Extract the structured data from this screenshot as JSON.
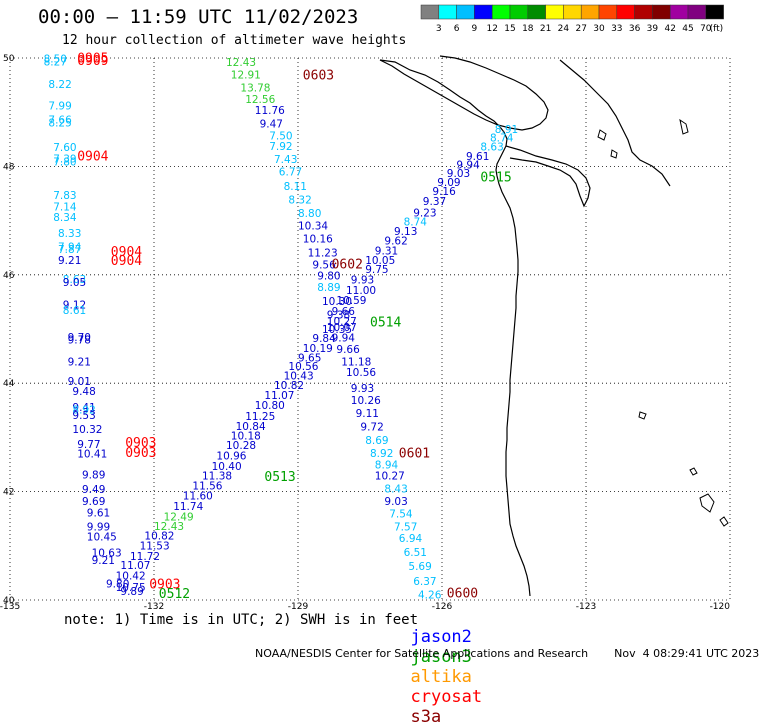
{
  "header": {
    "title": "00:00 – 11:59 UTC 11/02/2023",
    "subtitle": "12 hour collection of altimeter wave heights"
  },
  "colorbar": {
    "unit": "(ft)",
    "labels": [
      "3",
      "6",
      "9",
      "12",
      "15",
      "18",
      "21",
      "24",
      "27",
      "30",
      "33",
      "36",
      "39",
      "42",
      "45",
      "70"
    ],
    "colors": [
      "#808080",
      "#00ffff",
      "#00bfff",
      "#0000ff",
      "#00ff00",
      "#00cc00",
      "#008c00",
      "#ffff00",
      "#ffd700",
      "#ffa500",
      "#ff4500",
      "#ff0000",
      "#b00000",
      "#800000",
      "#a000a0",
      "#800080",
      "#000000"
    ]
  },
  "axes": {
    "lat_labels": [
      "50",
      "48",
      "46",
      "44",
      "42",
      "40"
    ],
    "lon_labels": [
      "-135",
      "-132",
      "-129",
      "-126",
      "-123",
      "-120"
    ]
  },
  "notes": {
    "text": "note: 1) Time is in UTC; 2) SWH is in feet",
    "credit": "NOAA/NESDIS Center for Satellite Applications and Research",
    "generated": "Nov  4 08:29:41 UTC 2023"
  },
  "satellites": [
    {
      "name": "jason2",
      "color": "#0000ff"
    },
    {
      "name": "jason3",
      "color": "#00a000"
    },
    {
      "name": "altika",
      "color": "#ff9900"
    },
    {
      "name": "cryosat",
      "color": "#ff0000"
    },
    {
      "name": "s3a",
      "color": "#8b0000"
    }
  ],
  "tracks": [
    {
      "id": "cryosat-0904-0905-0903",
      "time_labels": [
        {
          "text": "0905",
          "lon": -133.6,
          "lat": 49.92,
          "color": "#ff0000"
        },
        {
          "text": "0909",
          "lon": -133.6,
          "lat": 49.87,
          "color": "#ff0000"
        },
        {
          "text": "0904",
          "lon": -133.6,
          "lat": 48.11,
          "color": "#ff0000"
        },
        {
          "text": "0904",
          "lon": -132.9,
          "lat": 46.35,
          "color": "#ff0000"
        },
        {
          "text": "0904",
          "lon": -132.9,
          "lat": 46.18,
          "color": "#ff0000"
        },
        {
          "text": "0903",
          "lon": -132.6,
          "lat": 42.82,
          "color": "#ff0000"
        },
        {
          "text": "0903",
          "lon": -132.6,
          "lat": 42.64,
          "color": "#ff0000"
        },
        {
          "text": "0903",
          "lon": -132.1,
          "lat": 40.21,
          "color": "#ff0000"
        }
      ],
      "points": [
        {
          "v": "8.50",
          "lon": -134.3,
          "lat": 49.92,
          "c": "#00bfff"
        },
        {
          "v": "8.27",
          "lon": -134.3,
          "lat": 49.86,
          "c": "#00bfff"
        },
        {
          "v": "8.22",
          "lon": -134.2,
          "lat": 49.45,
          "c": "#00bfff"
        },
        {
          "v": "7.99",
          "lon": -134.2,
          "lat": 49.05,
          "c": "#00bfff"
        },
        {
          "v": "7.66",
          "lon": -134.2,
          "lat": 48.79,
          "c": "#00bfff"
        },
        {
          "v": "8.25",
          "lon": -134.2,
          "lat": 48.74,
          "c": "#00bfff"
        },
        {
          "v": "7.60",
          "lon": -134.1,
          "lat": 48.28,
          "c": "#00bfff"
        },
        {
          "v": "7.39",
          "lon": -134.1,
          "lat": 48.07,
          "c": "#00bfff"
        },
        {
          "v": "7.80",
          "lon": -134.1,
          "lat": 48.02,
          "c": "#00bfff"
        },
        {
          "v": "7.83",
          "lon": -134.1,
          "lat": 47.4,
          "c": "#00bfff"
        },
        {
          "v": "7.14",
          "lon": -134.1,
          "lat": 47.19,
          "c": "#00bfff"
        },
        {
          "v": "8.34",
          "lon": -134.1,
          "lat": 46.99,
          "c": "#00bfff"
        },
        {
          "v": "8.33",
          "lon": -134.0,
          "lat": 46.7,
          "c": "#00bfff"
        },
        {
          "v": "7.94",
          "lon": -134.0,
          "lat": 46.45,
          "c": "#00bfff"
        },
        {
          "v": "7.87",
          "lon": -134.0,
          "lat": 46.4,
          "c": "#00bfff"
        },
        {
          "v": "9.21",
          "lon": -134.0,
          "lat": 46.2,
          "c": "#0000cd"
        },
        {
          "v": "8.63",
          "lon": -133.9,
          "lat": 45.85,
          "c": "#00bfff"
        },
        {
          "v": "9.05",
          "lon": -133.9,
          "lat": 45.79,
          "c": "#0000cd"
        },
        {
          "v": "9.12",
          "lon": -133.9,
          "lat": 45.38,
          "c": "#0000cd"
        },
        {
          "v": "8.61",
          "lon": -133.9,
          "lat": 45.28,
          "c": "#00bfff"
        },
        {
          "v": "9.70",
          "lon": -133.8,
          "lat": 44.78,
          "c": "#0000cd"
        },
        {
          "v": "9.78",
          "lon": -133.8,
          "lat": 44.73,
          "c": "#0000cd"
        },
        {
          "v": "9.21",
          "lon": -133.8,
          "lat": 44.33,
          "c": "#0000cd"
        },
        {
          "v": "9.01",
          "lon": -133.8,
          "lat": 43.97,
          "c": "#0000cd"
        },
        {
          "v": "9.48",
          "lon": -133.7,
          "lat": 43.78,
          "c": "#0000cd"
        },
        {
          "v": "9.41",
          "lon": -133.7,
          "lat": 43.49,
          "c": "#0000cd"
        },
        {
          "v": "8.92",
          "lon": -133.7,
          "lat": 43.44,
          "c": "#00bfff"
        },
        {
          "v": "9.53",
          "lon": -133.7,
          "lat": 43.34,
          "c": "#0000cd"
        },
        {
          "v": "10.32",
          "lon": -133.7,
          "lat": 43.08,
          "c": "#0000cd"
        },
        {
          "v": "9.77",
          "lon": -133.6,
          "lat": 42.8,
          "c": "#0000cd"
        },
        {
          "v": "10.41",
          "lon": -133.6,
          "lat": 42.63,
          "c": "#0000cd"
        },
        {
          "v": "9.89",
          "lon": -133.5,
          "lat": 42.24,
          "c": "#0000cd"
        },
        {
          "v": "9.49",
          "lon": -133.5,
          "lat": 41.97,
          "c": "#0000cd"
        },
        {
          "v": "9.69",
          "lon": -133.5,
          "lat": 41.75,
          "c": "#0000cd"
        },
        {
          "v": "9.61",
          "lon": -133.4,
          "lat": 41.54,
          "c": "#0000cd"
        },
        {
          "v": "9.99",
          "lon": -133.4,
          "lat": 41.28,
          "c": "#0000cd"
        },
        {
          "v": "10.45",
          "lon": -133.4,
          "lat": 41.1,
          "c": "#0000cd"
        },
        {
          "v": "10.63",
          "lon": -133.3,
          "lat": 40.8,
          "c": "#0000cd"
        },
        {
          "v": "9.21",
          "lon": -133.3,
          "lat": 40.66,
          "c": "#0000cd"
        },
        {
          "v": "9.80",
          "lon": -133.0,
          "lat": 40.23,
          "c": "#0000cd"
        },
        {
          "v": "10.75",
          "lon": -132.8,
          "lat": 40.17,
          "c": "#0000cd"
        },
        {
          "v": "9.89",
          "lon": -132.7,
          "lat": 40.09,
          "c": "#0000cd"
        }
      ]
    },
    {
      "id": "s3a-0603-0600",
      "time_labels": [
        {
          "text": "0603",
          "lon": -128.9,
          "lat": 49.6,
          "color": "#8b0000"
        },
        {
          "text": "0602",
          "lon": -128.3,
          "lat": 46.12,
          "color": "#8b0000"
        },
        {
          "text": "0601",
          "lon": -126.9,
          "lat": 42.63,
          "color": "#8b0000"
        },
        {
          "text": "0600",
          "lon": -125.9,
          "lat": 40.05,
          "color": "#8b0000"
        }
      ],
      "points": [
        {
          "v": "12.43",
          "lon": -130.5,
          "lat": 49.85,
          "c": "#32cd32"
        },
        {
          "v": "12.91",
          "lon": -130.4,
          "lat": 49.62,
          "c": "#32cd32"
        },
        {
          "v": "13.78",
          "lon": -130.2,
          "lat": 49.38,
          "c": "#32cd32"
        },
        {
          "v": "12.56",
          "lon": -130.1,
          "lat": 49.17,
          "c": "#32cd32"
        },
        {
          "v": "11.76",
          "lon": -129.9,
          "lat": 48.97,
          "c": "#0000cd"
        },
        {
          "v": "9.47",
          "lon": -129.8,
          "lat": 48.72,
          "c": "#0000cd"
        },
        {
          "v": "7.50",
          "lon": -129.6,
          "lat": 48.5,
          "c": "#00bfff"
        },
        {
          "v": "7.92",
          "lon": -129.6,
          "lat": 48.3,
          "c": "#00bfff"
        },
        {
          "v": "7.43",
          "lon": -129.5,
          "lat": 48.06,
          "c": "#00bfff"
        },
        {
          "v": "6.77",
          "lon": -129.4,
          "lat": 47.83,
          "c": "#00bfff"
        },
        {
          "v": "8.11",
          "lon": -129.3,
          "lat": 47.56,
          "c": "#00bfff"
        },
        {
          "v": "8.32",
          "lon": -129.2,
          "lat": 47.32,
          "c": "#00bfff"
        },
        {
          "v": "8.80",
          "lon": -129.0,
          "lat": 47.07,
          "c": "#00bfff"
        },
        {
          "v": "10.34",
          "lon": -129.0,
          "lat": 46.84,
          "c": "#0000cd"
        },
        {
          "v": "10.16",
          "lon": -128.9,
          "lat": 46.6,
          "c": "#0000cd"
        },
        {
          "v": "11.23",
          "lon": -128.8,
          "lat": 46.34,
          "c": "#0000cd"
        },
        {
          "v": "9.56",
          "lon": -128.7,
          "lat": 46.12,
          "c": "#0000cd"
        },
        {
          "v": "9.80",
          "lon": -128.6,
          "lat": 45.91,
          "c": "#0000cd"
        },
        {
          "v": "8.89",
          "lon": -128.6,
          "lat": 45.7,
          "c": "#00bfff"
        },
        {
          "v": "10.30",
          "lon": -128.5,
          "lat": 45.44,
          "c": "#0000cd"
        },
        {
          "v": "9.38",
          "lon": -128.4,
          "lat": 45.19,
          "c": "#0000cd"
        },
        {
          "v": "10.07",
          "lon": -128.4,
          "lat": 44.96,
          "c": "#0000cd"
        },
        {
          "v": "9.94",
          "lon": -128.3,
          "lat": 44.77,
          "c": "#0000cd"
        },
        {
          "v": "9.66",
          "lon": -128.2,
          "lat": 44.56,
          "c": "#0000cd"
        },
        {
          "v": "11.18",
          "lon": -128.1,
          "lat": 44.33,
          "c": "#0000cd"
        },
        {
          "v": "10.56",
          "lon": -128.0,
          "lat": 44.13,
          "c": "#0000cd"
        },
        {
          "v": "9.93",
          "lon": -127.9,
          "lat": 43.84,
          "c": "#0000cd"
        },
        {
          "v": "10.26",
          "lon": -127.9,
          "lat": 43.62,
          "c": "#0000cd"
        },
        {
          "v": "9.11",
          "lon": -127.8,
          "lat": 43.38,
          "c": "#0000cd"
        },
        {
          "v": "9.72",
          "lon": -127.7,
          "lat": 43.13,
          "c": "#0000cd"
        },
        {
          "v": "8.69",
          "lon": -127.6,
          "lat": 42.88,
          "c": "#00bfff"
        },
        {
          "v": "8.92",
          "lon": -127.5,
          "lat": 42.64,
          "c": "#00bfff"
        },
        {
          "v": "8.94",
          "lon": -127.4,
          "lat": 42.43,
          "c": "#00bfff"
        },
        {
          "v": "10.27",
          "lon": -127.4,
          "lat": 42.22,
          "c": "#0000cd"
        },
        {
          "v": "8.43",
          "lon": -127.2,
          "lat": 41.98,
          "c": "#00bfff"
        },
        {
          "v": "9.03",
          "lon": -127.2,
          "lat": 41.75,
          "c": "#0000cd"
        },
        {
          "v": "7.54",
          "lon": -127.1,
          "lat": 41.52,
          "c": "#00bfff"
        },
        {
          "v": "7.57",
          "lon": -127.0,
          "lat": 41.28,
          "c": "#00bfff"
        },
        {
          "v": "6.94",
          "lon": -126.9,
          "lat": 41.07,
          "c": "#00bfff"
        },
        {
          "v": "6.51",
          "lon": -126.8,
          "lat": 40.81,
          "c": "#00bfff"
        },
        {
          "v": "5.69",
          "lon": -126.7,
          "lat": 40.55,
          "c": "#00bfff"
        },
        {
          "v": "6.37",
          "lon": -126.6,
          "lat": 40.28,
          "c": "#00bfff"
        },
        {
          "v": "4.26",
          "lon": -126.5,
          "lat": 40.03,
          "c": "#00bfff"
        }
      ]
    },
    {
      "id": "jason3-0512-0515",
      "time_labels": [
        {
          "text": "0515",
          "lon": -125.2,
          "lat": 47.72,
          "color": "#00a000"
        },
        {
          "text": "0514",
          "lon": -127.5,
          "lat": 45.05,
          "color": "#00a000"
        },
        {
          "text": "0513",
          "lon": -129.7,
          "lat": 42.2,
          "color": "#00a000"
        },
        {
          "text": "0512",
          "lon": -131.9,
          "lat": 40.04,
          "color": "#00a000"
        }
      ],
      "points": [
        {
          "v": "8.91",
          "lon": -124.9,
          "lat": 48.62,
          "c": "#00bfff"
        },
        {
          "v": "8.74",
          "lon": -125.0,
          "lat": 48.46,
          "c": "#00bfff"
        },
        {
          "v": "8.63",
          "lon": -125.2,
          "lat": 48.29,
          "c": "#00bfff"
        },
        {
          "v": "9.61",
          "lon": -125.5,
          "lat": 48.12,
          "c": "#0000cd"
        },
        {
          "v": "9.94",
          "lon": -125.7,
          "lat": 47.96,
          "c": "#0000cd"
        },
        {
          "v": "9.03",
          "lon": -125.9,
          "lat": 47.8,
          "c": "#0000cd"
        },
        {
          "v": "9.09",
          "lon": -126.1,
          "lat": 47.64,
          "c": "#0000cd"
        },
        {
          "v": "9.16",
          "lon": -126.2,
          "lat": 47.47,
          "c": "#0000cd"
        },
        {
          "v": "9.37",
          "lon": -126.4,
          "lat": 47.29,
          "c": "#0000cd"
        },
        {
          "v": "9.23",
          "lon": -126.6,
          "lat": 47.08,
          "c": "#0000cd"
        },
        {
          "v": "8.74",
          "lon": -126.8,
          "lat": 46.91,
          "c": "#00bfff"
        },
        {
          "v": "9.13",
          "lon": -127.0,
          "lat": 46.73,
          "c": "#0000cd"
        },
        {
          "v": "9.62",
          "lon": -127.2,
          "lat": 46.56,
          "c": "#0000cd"
        },
        {
          "v": "9.31",
          "lon": -127.4,
          "lat": 46.37,
          "c": "#0000cd"
        },
        {
          "v": "10.05",
          "lon": -127.6,
          "lat": 46.2,
          "c": "#0000cd"
        },
        {
          "v": "9.75",
          "lon": -127.6,
          "lat": 46.03,
          "c": "#0000cd"
        },
        {
          "v": "9.93",
          "lon": -127.9,
          "lat": 45.84,
          "c": "#0000cd"
        },
        {
          "v": "11.00",
          "lon": -128.0,
          "lat": 45.65,
          "c": "#0000cd"
        },
        {
          "v": "10.59",
          "lon": -128.2,
          "lat": 45.46,
          "c": "#0000cd"
        },
        {
          "v": "9.66",
          "lon": -128.3,
          "lat": 45.26,
          "c": "#0000cd"
        },
        {
          "v": "10.27",
          "lon": -128.4,
          "lat": 45.07,
          "c": "#0000cd"
        },
        {
          "v": "10.35",
          "lon": -128.5,
          "lat": 44.93,
          "c": "#0000cd"
        },
        {
          "v": "9.84",
          "lon": -128.7,
          "lat": 44.76,
          "c": "#0000cd"
        },
        {
          "v": "10.19",
          "lon": -128.9,
          "lat": 44.58,
          "c": "#0000cd"
        },
        {
          "v": "9.65",
          "lon": -129.0,
          "lat": 44.4,
          "c": "#0000cd"
        },
        {
          "v": "10.56",
          "lon": -129.2,
          "lat": 44.24,
          "c": "#0000cd"
        },
        {
          "v": "10.43",
          "lon": -129.3,
          "lat": 44.07,
          "c": "#0000cd"
        },
        {
          "v": "10.82",
          "lon": -129.5,
          "lat": 43.89,
          "c": "#0000cd"
        },
        {
          "v": "11.07",
          "lon": -129.7,
          "lat": 43.71,
          "c": "#0000cd"
        },
        {
          "v": "10.80",
          "lon": -129.9,
          "lat": 43.52,
          "c": "#0000cd"
        },
        {
          "v": "11.25",
          "lon": -130.1,
          "lat": 43.32,
          "c": "#0000cd"
        },
        {
          "v": "10.84",
          "lon": -130.3,
          "lat": 43.14,
          "c": "#0000cd"
        },
        {
          "v": "10.18",
          "lon": -130.4,
          "lat": 42.96,
          "c": "#0000cd"
        },
        {
          "v": "10.28",
          "lon": -130.5,
          "lat": 42.79,
          "c": "#0000cd"
        },
        {
          "v": "10.96",
          "lon": -130.7,
          "lat": 42.59,
          "c": "#0000cd"
        },
        {
          "v": "10.40",
          "lon": -130.8,
          "lat": 42.4,
          "c": "#0000cd"
        },
        {
          "v": "11.38",
          "lon": -131.0,
          "lat": 42.22,
          "c": "#0000cd"
        },
        {
          "v": "11.56",
          "lon": -131.2,
          "lat": 42.04,
          "c": "#0000cd"
        },
        {
          "v": "11.60",
          "lon": -131.4,
          "lat": 41.85,
          "c": "#0000cd"
        },
        {
          "v": "11.74",
          "lon": -131.6,
          "lat": 41.66,
          "c": "#0000cd"
        },
        {
          "v": "12.49",
          "lon": -131.8,
          "lat": 41.47,
          "c": "#32cd32"
        },
        {
          "v": "12.43",
          "lon": -132.0,
          "lat": 41.29,
          "c": "#32cd32"
        },
        {
          "v": "10.82",
          "lon": -132.2,
          "lat": 41.12,
          "c": "#0000cd"
        },
        {
          "v": "11.53",
          "lon": -132.3,
          "lat": 40.93,
          "c": "#0000cd"
        },
        {
          "v": "11.72",
          "lon": -132.5,
          "lat": 40.74,
          "c": "#0000cd"
        },
        {
          "v": "11.07",
          "lon": -132.7,
          "lat": 40.57,
          "c": "#0000cd"
        },
        {
          "v": "10.42",
          "lon": -132.8,
          "lat": 40.38,
          "c": "#0000cd"
        }
      ]
    }
  ]
}
